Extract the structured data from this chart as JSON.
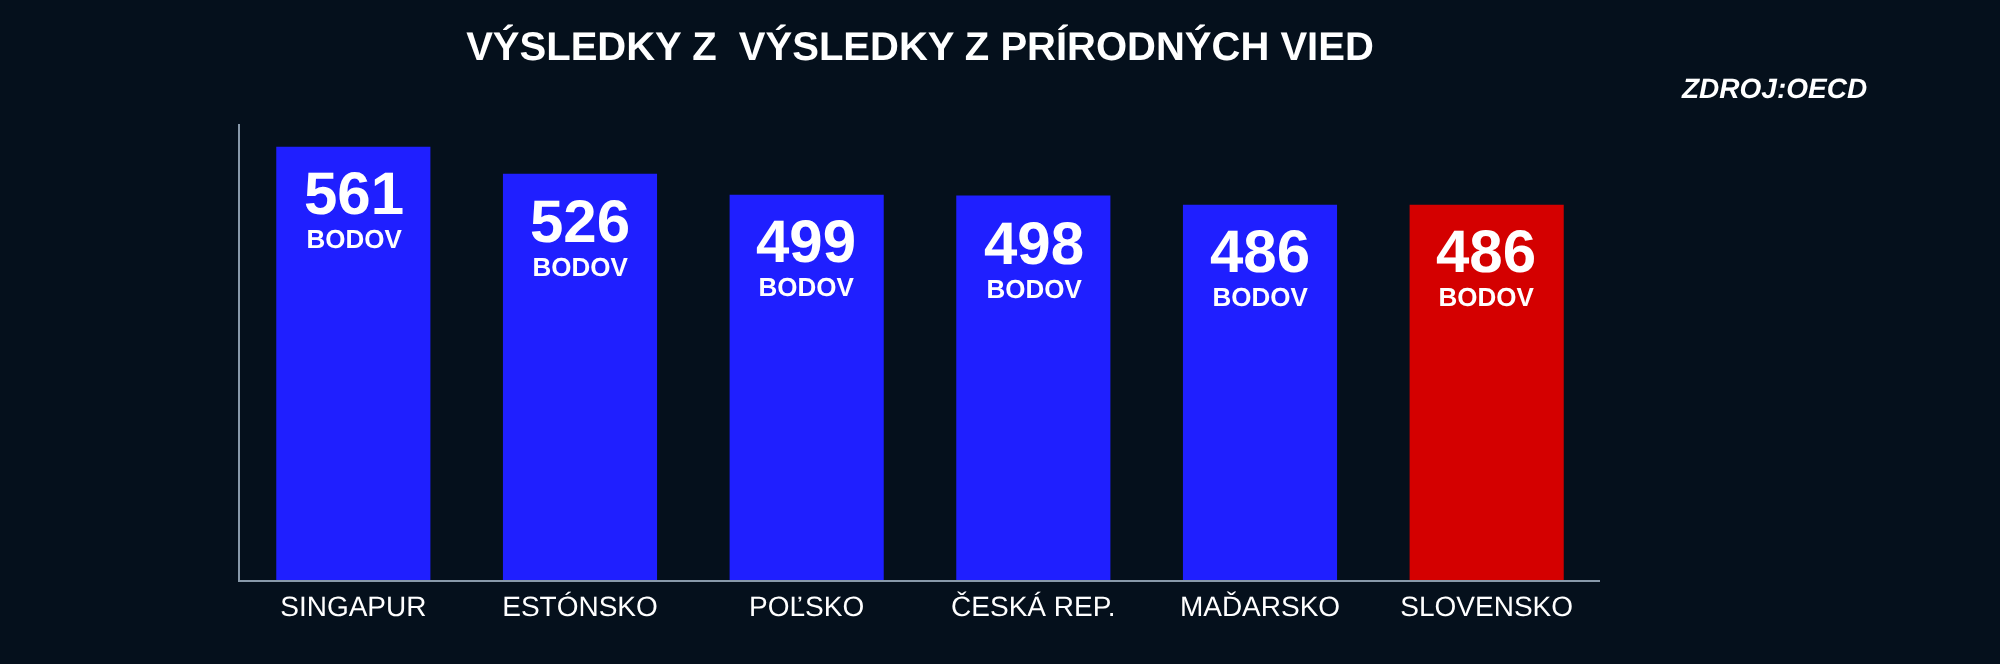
{
  "chart_data": {
    "type": "bar",
    "title": "VÝSLEDKY Z  VÝSLEDKY Z PRÍRODNÝCH VIED",
    "annotations": [
      "ZDROJ:OECD"
    ],
    "categories": [
      "SINGAPUR",
      "ESTÓNSKO",
      "POĽSKO",
      "ČESKÁ REP.",
      "MAĎARSKO",
      "SLOVENSKO"
    ],
    "values": [
      561,
      526,
      499,
      498,
      486,
      486
    ],
    "colors": [
      "#1f1fff",
      "#1f1fff",
      "#1f1fff",
      "#1f1fff",
      "#1f1fff",
      "#d40000"
    ],
    "value_labels": [
      "561 BODOV",
      "526 BODOV",
      "499 BODOV",
      "498 BODOV",
      "486 BODOV",
      "486 BODOV"
    ],
    "grid": false
  }
}
